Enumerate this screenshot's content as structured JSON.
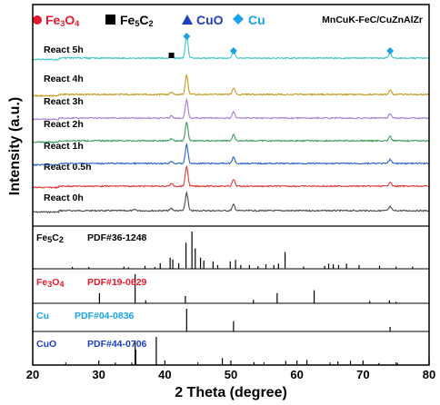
{
  "chart_data": {
    "type": "line",
    "title": "",
    "sample": "MnCuK-FeC/CuZnAlZr",
    "xlabel": "2 Theta (degree)",
    "ylabel": "Intensity (a.u.)",
    "xlim": [
      20,
      80
    ],
    "xticks": [
      "20",
      "30",
      "40",
      "50",
      "60",
      "70",
      "80"
    ],
    "legend": [
      {
        "marker": "circle",
        "label": "Fe3O4",
        "color": "#e8192c"
      },
      {
        "marker": "square",
        "label": "Fe5C2",
        "color": "#000000"
      },
      {
        "marker": "triangle",
        "label": "CuO",
        "color": "#1f3fc2"
      },
      {
        "marker": "diamond",
        "label": "Cu",
        "color": "#1aa3e8"
      }
    ],
    "series": [
      {
        "name": "React 0h",
        "color": "#4a4a4a"
      },
      {
        "name": "React 0.5h",
        "color": "#e03a3a"
      },
      {
        "name": "React 1h",
        "color": "#2a62c9"
      },
      {
        "name": "React 2h",
        "color": "#3a9c5a"
      },
      {
        "name": "React 3h",
        "color": "#a97bd9"
      },
      {
        "name": "React 4h",
        "color": "#c99a1e"
      },
      {
        "name": "React 5h",
        "color": "#3cc7c7"
      }
    ],
    "peaks": [
      {
        "two_theta": 43.3,
        "height": 1.0
      },
      {
        "two_theta": 50.4,
        "height": 0.33
      },
      {
        "two_theta": 74.1,
        "height": 0.22
      },
      {
        "two_theta": 41.0,
        "height": 0.12
      },
      {
        "two_theta": 35.5,
        "height": 0.06
      }
    ],
    "series_markers": [
      {
        "series": "React 5h",
        "marker": "diamond",
        "two_theta": [
          43.3,
          50.4,
          74.1
        ]
      },
      {
        "series": "React 5h",
        "marker": "square",
        "two_theta": [
          41.0
        ]
      }
    ],
    "references": [
      {
        "name": "Fe5C2",
        "pdf": "PDF#36-1248",
        "color": "#000000",
        "lines": [
          [
            26.0,
            0.05
          ],
          [
            28.5,
            0.05
          ],
          [
            33.8,
            0.06
          ],
          [
            34.5,
            0.04
          ],
          [
            37.0,
            0.08
          ],
          [
            38.5,
            0.05
          ],
          [
            39.3,
            0.15
          ],
          [
            40.8,
            0.3
          ],
          [
            41.2,
            0.25
          ],
          [
            42.1,
            0.15
          ],
          [
            43.2,
            0.7
          ],
          [
            44.1,
            1.0
          ],
          [
            44.6,
            0.55
          ],
          [
            45.4,
            0.3
          ],
          [
            45.9,
            0.22
          ],
          [
            47.3,
            0.2
          ],
          [
            48.0,
            0.1
          ],
          [
            49.9,
            0.2
          ],
          [
            50.7,
            0.24
          ],
          [
            51.5,
            0.1
          ],
          [
            52.8,
            0.1
          ],
          [
            54.1,
            0.07
          ],
          [
            55.3,
            0.12
          ],
          [
            56.5,
            0.1
          ],
          [
            57.2,
            0.14
          ],
          [
            58.2,
            0.45
          ],
          [
            61.0,
            0.06
          ],
          [
            64.2,
            0.08
          ],
          [
            64.8,
            0.14
          ],
          [
            65.5,
            0.12
          ],
          [
            66.3,
            0.1
          ],
          [
            67.5,
            0.14
          ],
          [
            69.4,
            0.1
          ],
          [
            72.5,
            0.08
          ],
          [
            75.0,
            0.06
          ],
          [
            77.5,
            0.06
          ]
        ]
      },
      {
        "name": "Fe3O4",
        "pdf": "PDF#19-0629",
        "color": "#e8192c",
        "lines": [
          [
            18.3,
            0.1
          ],
          [
            30.1,
            0.35
          ],
          [
            35.5,
            1.0
          ],
          [
            37.1,
            0.1
          ],
          [
            43.1,
            0.25
          ],
          [
            53.4,
            0.12
          ],
          [
            57.0,
            0.35
          ],
          [
            62.6,
            0.45
          ],
          [
            71.0,
            0.08
          ],
          [
            74.0,
            0.1
          ],
          [
            75.0,
            0.05
          ]
        ]
      },
      {
        "name": "Cu",
        "pdf": "PDF#04-0836",
        "color": "#1aa3e8",
        "lines": [
          [
            43.3,
            1.0
          ],
          [
            50.4,
            0.45
          ],
          [
            74.1,
            0.2
          ]
        ]
      },
      {
        "name": "CuO",
        "pdf": "PDF#44-0706",
        "color": "#1f3fc2",
        "lines": [
          [
            32.5,
            0.09
          ],
          [
            35.5,
            0.85
          ],
          [
            35.6,
            0.55
          ],
          [
            38.7,
            1.0
          ],
          [
            48.7,
            0.25
          ],
          [
            53.5,
            0.1
          ],
          [
            58.3,
            0.15
          ],
          [
            61.5,
            0.18
          ],
          [
            66.2,
            0.13
          ],
          [
            68.1,
            0.15
          ],
          [
            72.4,
            0.07
          ],
          [
            75.2,
            0.08
          ]
        ]
      }
    ]
  }
}
